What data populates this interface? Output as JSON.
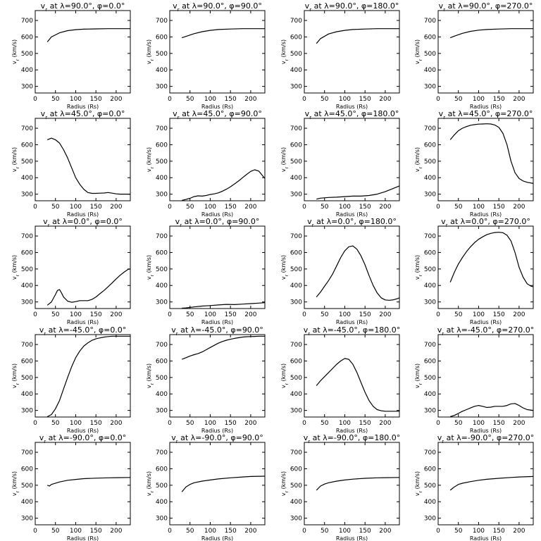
{
  "figure": {
    "ylabel": "v",
    "ylabel_sub": "r",
    "ylabel_units": "(km/s)",
    "xlabel": "Radius (Rs)"
  },
  "chart_data": [
    {
      "type": "line",
      "title_lambda": "90.0°",
      "title_phi": "0.0°",
      "xlim": [
        0,
        235
      ],
      "ylim": [
        260,
        760
      ],
      "x": [
        30,
        40,
        60,
        80,
        100,
        120,
        150,
        180,
        200,
        235
      ],
      "y": [
        570,
        600,
        625,
        638,
        644,
        647,
        649,
        650,
        650,
        650
      ]
    },
    {
      "type": "line",
      "title_lambda": "90.0°",
      "title_phi": "90.0°",
      "xlim": [
        0,
        235
      ],
      "ylim": [
        260,
        760
      ],
      "x": [
        30,
        40,
        60,
        80,
        100,
        120,
        150,
        180,
        200,
        235
      ],
      "y": [
        595,
        603,
        620,
        632,
        640,
        645,
        648,
        650,
        650,
        650
      ]
    },
    {
      "type": "line",
      "title_lambda": "90.0°",
      "title_phi": "180.0°",
      "xlim": [
        0,
        235
      ],
      "ylim": [
        260,
        760
      ],
      "x": [
        30,
        40,
        60,
        80,
        100,
        120,
        150,
        180,
        200,
        235
      ],
      "y": [
        560,
        590,
        618,
        632,
        640,
        645,
        648,
        650,
        650,
        650
      ]
    },
    {
      "type": "line",
      "title_lambda": "90.0°",
      "title_phi": "270.0°",
      "xlim": [
        0,
        235
      ],
      "ylim": [
        260,
        760
      ],
      "x": [
        30,
        40,
        60,
        80,
        100,
        120,
        150,
        180,
        200,
        235
      ],
      "y": [
        595,
        605,
        622,
        634,
        641,
        645,
        648,
        650,
        650,
        650
      ]
    },
    {
      "type": "line",
      "title_lambda": "45.0°",
      "title_phi": "0.0°",
      "xlim": [
        0,
        235
      ],
      "ylim": [
        260,
        760
      ],
      "x": [
        30,
        40,
        50,
        60,
        70,
        80,
        90,
        100,
        110,
        120,
        130,
        140,
        150,
        160,
        170,
        180,
        190,
        200,
        210,
        220,
        235
      ],
      "y": [
        630,
        640,
        630,
        610,
        570,
        520,
        460,
        400,
        360,
        330,
        310,
        305,
        305,
        306,
        307,
        310,
        306,
        302,
        300,
        300,
        300
      ]
    },
    {
      "type": "line",
      "title_lambda": "45.0°",
      "title_phi": "90.0°",
      "xlim": [
        0,
        235
      ],
      "ylim": [
        260,
        760
      ],
      "x": [
        30,
        40,
        50,
        60,
        70,
        80,
        90,
        100,
        110,
        120,
        130,
        140,
        150,
        160,
        170,
        180,
        190,
        200,
        210,
        220,
        230,
        235
      ],
      "y": [
        262,
        268,
        275,
        285,
        290,
        288,
        292,
        298,
        302,
        308,
        318,
        330,
        345,
        362,
        380,
        400,
        420,
        438,
        448,
        440,
        410,
        395
      ]
    },
    {
      "type": "line",
      "title_lambda": "45.0°",
      "title_phi": "180.0°",
      "xlim": [
        0,
        235
      ],
      "ylim": [
        260,
        760
      ],
      "x": [
        30,
        40,
        60,
        80,
        100,
        120,
        140,
        160,
        180,
        200,
        220,
        235
      ],
      "y": [
        270,
        276,
        280,
        282,
        285,
        288,
        288,
        292,
        300,
        315,
        335,
        350
      ]
    },
    {
      "type": "line",
      "title_lambda": "45.0°",
      "title_phi": "270.0°",
      "xlim": [
        0,
        235
      ],
      "ylim": [
        260,
        760
      ],
      "x": [
        30,
        40,
        50,
        60,
        70,
        80,
        90,
        100,
        110,
        120,
        130,
        140,
        150,
        160,
        170,
        180,
        190,
        200,
        210,
        220,
        235
      ],
      "y": [
        630,
        660,
        685,
        700,
        710,
        718,
        722,
        725,
        726,
        727,
        726,
        720,
        705,
        670,
        600,
        500,
        430,
        395,
        380,
        372,
        365
      ]
    },
    {
      "type": "line",
      "title_lambda": "0.0°",
      "title_phi": "0.0°",
      "xlim": [
        0,
        235
      ],
      "ylim": [
        260,
        760
      ],
      "x": [
        30,
        40,
        50,
        55,
        60,
        65,
        70,
        80,
        90,
        100,
        110,
        120,
        130,
        140,
        150,
        160,
        170,
        180,
        190,
        200,
        210,
        220,
        230,
        235
      ],
      "y": [
        280,
        300,
        345,
        370,
        375,
        355,
        330,
        305,
        298,
        302,
        308,
        308,
        308,
        315,
        330,
        350,
        370,
        392,
        415,
        440,
        462,
        482,
        498,
        500
      ]
    },
    {
      "type": "line",
      "title_lambda": "0.0°",
      "title_phi": "90.0°",
      "xlim": [
        0,
        235
      ],
      "ylim": [
        260,
        760
      ],
      "x": [
        30,
        40,
        60,
        80,
        100,
        120,
        140,
        160,
        180,
        200,
        220,
        235
      ],
      "y": [
        262,
        264,
        270,
        275,
        278,
        282,
        285,
        284,
        287,
        290,
        293,
        296
      ]
    },
    {
      "type": "line",
      "title_lambda": "0.0°",
      "title_phi": "180.0°",
      "xlim": [
        0,
        235
      ],
      "ylim": [
        260,
        760
      ],
      "x": [
        30,
        40,
        50,
        60,
        70,
        80,
        90,
        100,
        110,
        120,
        130,
        140,
        150,
        160,
        170,
        180,
        190,
        200,
        210,
        220,
        230,
        235
      ],
      "y": [
        330,
        360,
        395,
        430,
        470,
        520,
        570,
        610,
        635,
        640,
        620,
        580,
        525,
        460,
        400,
        355,
        325,
        312,
        310,
        313,
        320,
        325
      ]
    },
    {
      "type": "line",
      "title_lambda": "0.0°",
      "title_phi": "270.0°",
      "xlim": [
        0,
        235
      ],
      "ylim": [
        260,
        760
      ],
      "x": [
        30,
        40,
        50,
        60,
        70,
        80,
        90,
        100,
        110,
        120,
        130,
        140,
        150,
        160,
        170,
        180,
        190,
        200,
        210,
        220,
        230,
        235
      ],
      "y": [
        420,
        480,
        530,
        570,
        605,
        635,
        660,
        680,
        695,
        708,
        716,
        721,
        723,
        720,
        705,
        670,
        600,
        510,
        450,
        410,
        395,
        392
      ]
    },
    {
      "type": "line",
      "title_lambda": "-45.0°",
      "title_phi": "0.0°",
      "xlim": [
        0,
        235
      ],
      "ylim": [
        260,
        760
      ],
      "x": [
        30,
        40,
        50,
        60,
        70,
        80,
        90,
        100,
        110,
        120,
        130,
        140,
        150,
        160,
        170,
        180,
        190,
        200,
        210,
        220,
        235
      ],
      "y": [
        262,
        275,
        310,
        360,
        430,
        500,
        565,
        620,
        660,
        690,
        710,
        725,
        735,
        740,
        745,
        748,
        750,
        750,
        750,
        750,
        750
      ]
    },
    {
      "type": "line",
      "title_lambda": "-45.0°",
      "title_phi": "90.0°",
      "xlim": [
        0,
        235
      ],
      "ylim": [
        260,
        760
      ],
      "x": [
        30,
        40,
        50,
        60,
        70,
        80,
        90,
        100,
        110,
        120,
        130,
        140,
        150,
        160,
        170,
        180,
        190,
        200,
        210,
        220,
        235
      ],
      "y": [
        610,
        620,
        630,
        638,
        645,
        655,
        668,
        682,
        695,
        708,
        718,
        726,
        732,
        737,
        741,
        745,
        747,
        748,
        749,
        750,
        750
      ]
    },
    {
      "type": "line",
      "title_lambda": "-45.0°",
      "title_phi": "180.0°",
      "xlim": [
        0,
        235
      ],
      "ylim": [
        260,
        760
      ],
      "x": [
        30,
        40,
        50,
        60,
        70,
        80,
        90,
        100,
        110,
        120,
        130,
        140,
        150,
        160,
        170,
        180,
        190,
        200,
        210,
        220,
        235
      ],
      "y": [
        450,
        480,
        505,
        530,
        555,
        580,
        600,
        615,
        610,
        580,
        530,
        470,
        410,
        360,
        325,
        305,
        298,
        295,
        295,
        295,
        295
      ]
    },
    {
      "type": "line",
      "title_lambda": "-45.0°",
      "title_phi": "270.0°",
      "xlim": [
        0,
        235
      ],
      "ylim": [
        260,
        760
      ],
      "x": [
        30,
        40,
        50,
        60,
        70,
        80,
        90,
        100,
        110,
        120,
        130,
        140,
        150,
        160,
        170,
        180,
        190,
        200,
        210,
        220,
        235
      ],
      "y": [
        262,
        270,
        282,
        295,
        305,
        315,
        325,
        330,
        325,
        318,
        320,
        325,
        325,
        325,
        330,
        340,
        342,
        330,
        315,
        305,
        300
      ]
    },
    {
      "type": "line",
      "title_lambda": "-90.0°",
      "title_phi": "0.0°",
      "xlim": [
        0,
        235
      ],
      "ylim": [
        260,
        760
      ],
      "x": [
        30,
        35,
        40,
        60,
        80,
        100,
        120,
        150,
        180,
        200,
        235
      ],
      "y": [
        500,
        495,
        505,
        520,
        530,
        535,
        540,
        543,
        545,
        546,
        547
      ]
    },
    {
      "type": "line",
      "title_lambda": "-90.0°",
      "title_phi": "90.0°",
      "xlim": [
        0,
        235
      ],
      "ylim": [
        260,
        760
      ],
      "x": [
        30,
        40,
        50,
        60,
        80,
        100,
        120,
        150,
        180,
        200,
        235
      ],
      "y": [
        460,
        490,
        505,
        515,
        525,
        532,
        538,
        545,
        550,
        553,
        555
      ]
    },
    {
      "type": "line",
      "title_lambda": "-90.0°",
      "title_phi": "180.0°",
      "xlim": [
        0,
        235
      ],
      "ylim": [
        260,
        760
      ],
      "x": [
        30,
        40,
        50,
        60,
        80,
        100,
        120,
        150,
        180,
        200,
        235
      ],
      "y": [
        470,
        495,
        507,
        515,
        525,
        532,
        537,
        542,
        545,
        546,
        547
      ]
    },
    {
      "type": "line",
      "title_lambda": "-90.0°",
      "title_phi": "270.0°",
      "xlim": [
        0,
        235
      ],
      "ylim": [
        260,
        760
      ],
      "x": [
        30,
        40,
        50,
        60,
        80,
        100,
        120,
        150,
        180,
        200,
        235
      ],
      "y": [
        470,
        490,
        505,
        512,
        522,
        530,
        536,
        542,
        547,
        550,
        553
      ]
    }
  ],
  "axes": {
    "xticks": [
      0,
      50,
      100,
      150,
      200
    ],
    "yticks": [
      300,
      400,
      500,
      600,
      700
    ],
    "xtick_labels": [
      "0",
      "50",
      "100",
      "150",
      "200"
    ],
    "ytick_labels": [
      "300",
      "400",
      "500",
      "600",
      "700"
    ]
  }
}
